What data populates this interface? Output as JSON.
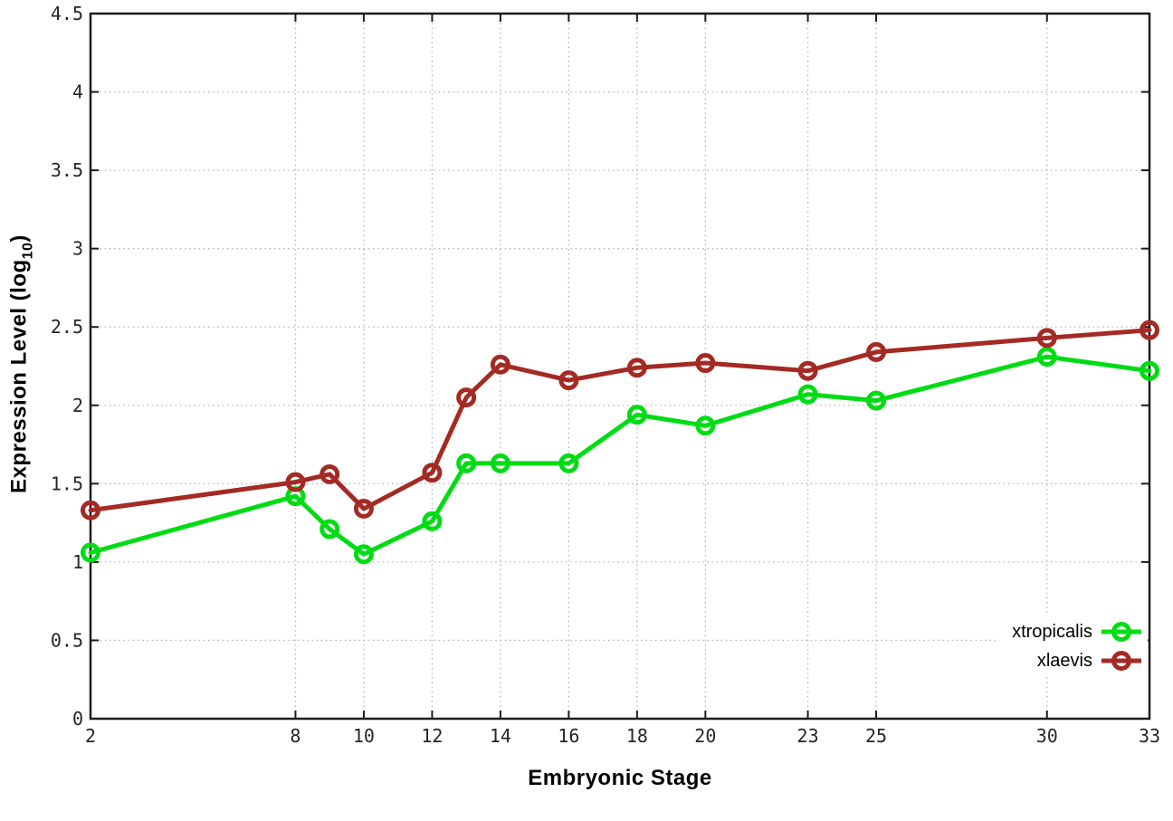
{
  "figure": {
    "background": "#ffffff",
    "border_color": "#1c1c1c",
    "grid_color": "#b8b8b8",
    "tick_label_color": "#262626"
  },
  "labels": {
    "xlabel": "Embryonic Stage",
    "ylabel_main": "Expression Level (log",
    "ylabel_sub": "10",
    "ylabel_end": ")"
  },
  "legend": {
    "items": [
      {
        "label": "xtropicalis",
        "color": "#00dc14"
      },
      {
        "label": "xlaevis",
        "color": "#a42a24"
      }
    ]
  },
  "chart_data": {
    "type": "line",
    "title": "",
    "xlabel": "Embryonic Stage",
    "ylabel": "Expression Level (log10)",
    "xlim": [
      2,
      33
    ],
    "ylim": [
      0,
      4.5
    ],
    "grid": true,
    "legend_position": "bottom-right",
    "marker": "open-circle",
    "x": [
      2,
      8,
      9,
      10,
      12,
      13,
      14,
      16,
      18,
      20,
      23,
      25,
      30,
      33
    ],
    "xtick_values": [
      2,
      8,
      10,
      12,
      14,
      16,
      18,
      20,
      23,
      25,
      30,
      33
    ],
    "xtick_labels": [
      "2",
      "8",
      "10",
      "12",
      "14",
      "16",
      "18",
      "20",
      "23",
      "25",
      "30",
      "33"
    ],
    "ytick_values": [
      0,
      0.5,
      1,
      1.5,
      2,
      2.5,
      3,
      3.5,
      4,
      4.5
    ],
    "ytick_labels": [
      "0",
      "0.5",
      "1",
      "1.5",
      "2",
      "2.5",
      "3",
      "3.5",
      "4",
      "4.5"
    ],
    "series": [
      {
        "name": "xtropicalis",
        "color": "#00dc14",
        "values": [
          1.06,
          1.42,
          1.21,
          1.05,
          1.26,
          1.63,
          1.63,
          1.63,
          1.94,
          1.87,
          2.07,
          2.03,
          2.31,
          2.22
        ]
      },
      {
        "name": "xlaevis",
        "color": "#a42a24",
        "values": [
          1.33,
          1.51,
          1.56,
          1.34,
          1.57,
          2.05,
          2.26,
          2.16,
          2.24,
          2.27,
          2.22,
          2.34,
          2.43,
          2.48
        ]
      }
    ]
  }
}
